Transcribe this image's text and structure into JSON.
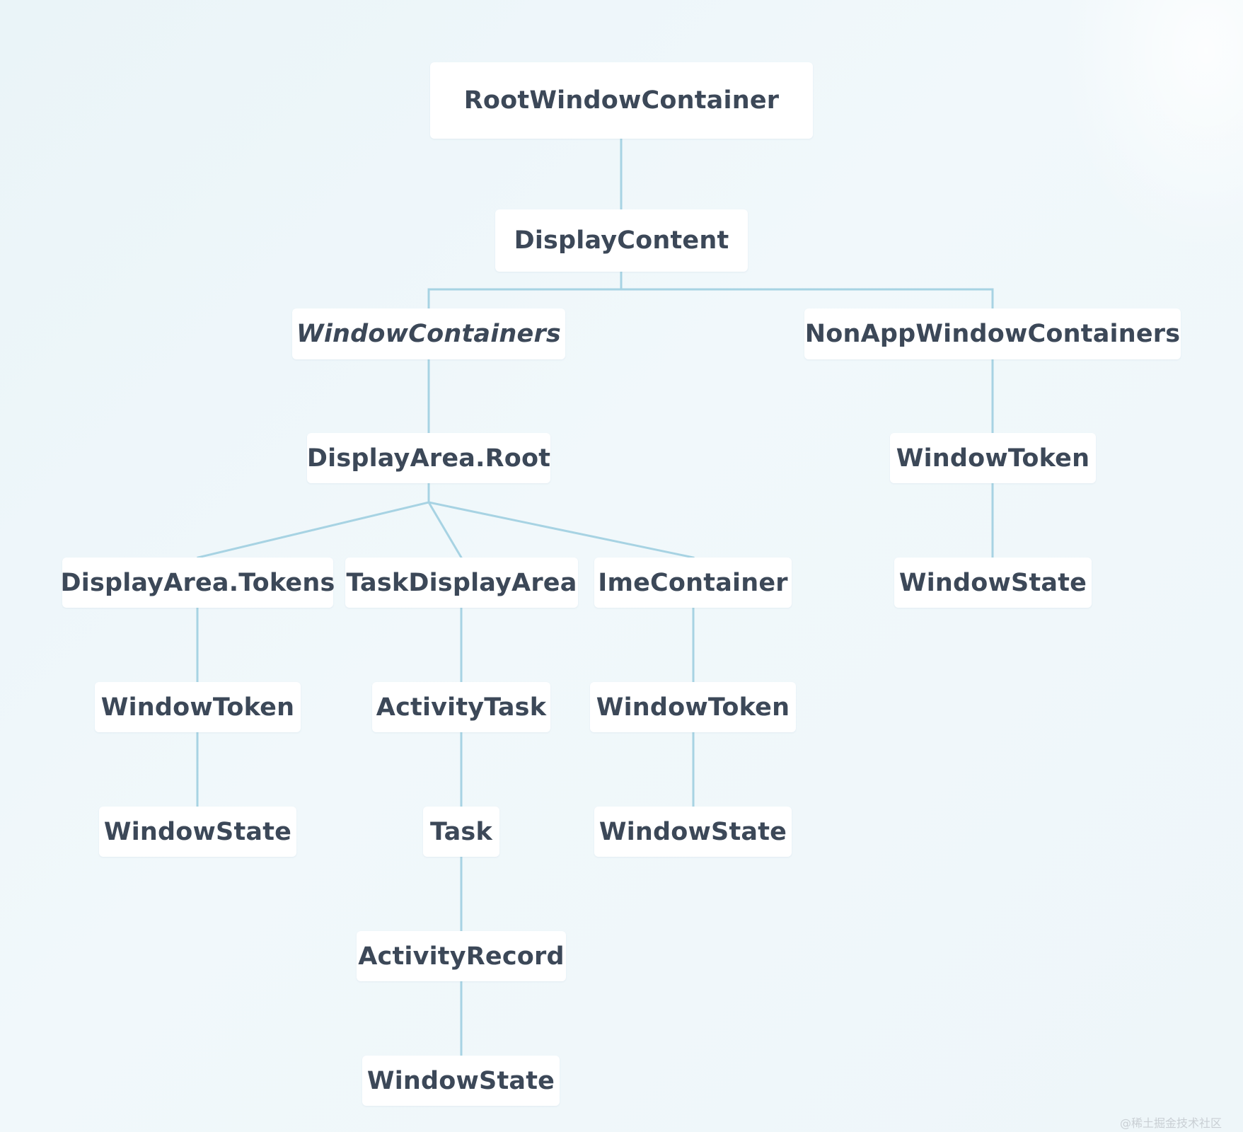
{
  "diagram": {
    "nodes": {
      "root": "RootWindowContainer",
      "display_content": "DisplayContent",
      "window_containers": "WindowContainers",
      "non_app_window_containers": "NonAppWindowContainers",
      "display_area_root": "DisplayArea.Root",
      "non_app_window_token": "WindowToken",
      "non_app_window_state": "WindowState",
      "display_area_tokens": "DisplayArea.Tokens",
      "task_display_area": "TaskDisplayArea",
      "ime_container": "ImeContainer",
      "tokens_window_token": "WindowToken",
      "activity_task": "ActivityTask",
      "ime_window_token": "WindowToken",
      "tokens_window_state": "WindowState",
      "task": "Task",
      "ime_window_state": "WindowState",
      "activity_record": "ActivityRecord",
      "activity_window_state": "WindowState"
    },
    "edges": [
      [
        "root",
        "display_content"
      ],
      [
        "display_content",
        "window_containers"
      ],
      [
        "display_content",
        "non_app_window_containers"
      ],
      [
        "window_containers",
        "display_area_root"
      ],
      [
        "non_app_window_containers",
        "non_app_window_token"
      ],
      [
        "non_app_window_token",
        "non_app_window_state"
      ],
      [
        "display_area_root",
        "display_area_tokens"
      ],
      [
        "display_area_root",
        "task_display_area"
      ],
      [
        "display_area_root",
        "ime_container"
      ],
      [
        "display_area_tokens",
        "tokens_window_token"
      ],
      [
        "tokens_window_token",
        "tokens_window_state"
      ],
      [
        "task_display_area",
        "activity_task"
      ],
      [
        "activity_task",
        "task"
      ],
      [
        "task",
        "activity_record"
      ],
      [
        "activity_record",
        "activity_window_state"
      ],
      [
        "ime_container",
        "ime_window_token"
      ],
      [
        "ime_window_token",
        "ime_window_state"
      ]
    ],
    "colors": {
      "background": "#eef6f9",
      "node_fill": "#ffffff",
      "node_text": "#3c4858",
      "connector": "#a7d3e3"
    }
  },
  "watermark": "@稀土掘金技术社区"
}
